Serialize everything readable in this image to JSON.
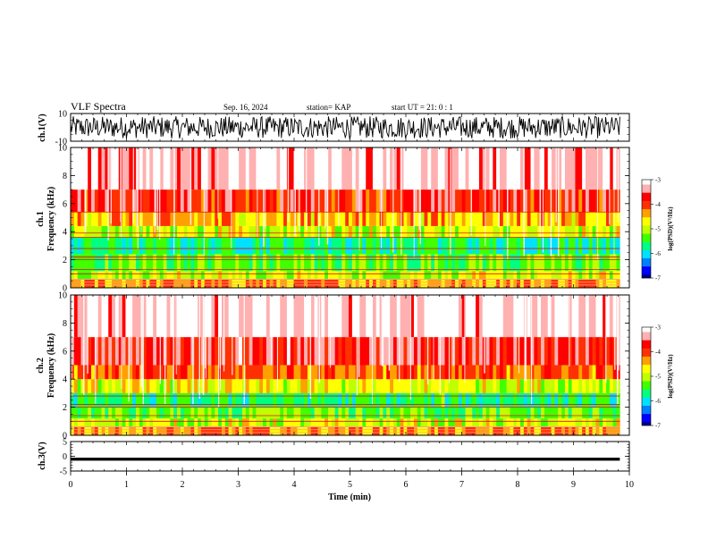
{
  "header": {
    "title": "VLF Spectra",
    "date": "Sep. 16, 2024",
    "station": "station= KAP",
    "start": "start  UT =  21: 0  : 1"
  },
  "colors": {
    "scale": [
      "#00007f",
      "#0000ff",
      "#0080ff",
      "#00e0ff",
      "#00ff80",
      "#40ff00",
      "#c0ff00",
      "#ffff00",
      "#ffa000",
      "#ff3000",
      "#ff0000",
      "#ffb0b0",
      "#ffffff"
    ]
  },
  "chart_data": [
    {
      "type": "line",
      "name": "ch1-waveform",
      "ylabel": "ch.1(V)",
      "ylim": [
        -10,
        10
      ],
      "yticks": [
        "10",
        "-10"
      ],
      "description_values": {
        "typical_amplitude_range": [
          -8,
          8
        ]
      }
    },
    {
      "type": "heatmap",
      "name": "ch1-spectrogram",
      "ylabel": "ch.1\nFrequency (kHz)",
      "ylabel_line1": "ch.1",
      "ylabel_line2": "Frequency (kHz)",
      "ylim": [
        0,
        10
      ],
      "yticks": [
        "0",
        "2",
        "4",
        "6",
        "8",
        "10"
      ],
      "colorbar": {
        "label": "log(PSD)(V²/Hz)",
        "range": [
          -7,
          -3
        ],
        "ticks": [
          "-3",
          "-4",
          "-5",
          "-6",
          "-7"
        ]
      },
      "band_levels": [
        {
          "from": 0,
          "to": 0.6,
          "level": -4.3
        },
        {
          "from": 0.6,
          "to": 1.2,
          "level": -4.9
        },
        {
          "from": 1.2,
          "to": 2.4,
          "level": -5.3
        },
        {
          "from": 2.4,
          "to": 3.6,
          "level": -5.6
        },
        {
          "from": 3.6,
          "to": 4.4,
          "level": -4.9
        },
        {
          "from": 4.4,
          "to": 5.4,
          "level": -4.4
        },
        {
          "from": 5.4,
          "to": 7.0,
          "level": -3.8
        },
        {
          "from": 7.0,
          "to": 10,
          "level": -3.2
        }
      ],
      "lines_khz": [
        0.2,
        0.4,
        0.6,
        1.0,
        1.3,
        2.0,
        2.2,
        2.8,
        3.6,
        3.9,
        5.4
      ]
    },
    {
      "type": "heatmap",
      "name": "ch2-spectrogram",
      "ylabel_line1": "ch.2",
      "ylabel_line2": "Frequency (kHz)",
      "ylim": [
        0,
        10
      ],
      "yticks": [
        "0",
        "2",
        "4",
        "6",
        "8",
        "10"
      ],
      "colorbar": {
        "label": "log(PSD)(V²/Hz)",
        "range": [
          -7,
          -3
        ],
        "ticks": [
          "-3",
          "-4",
          "-5",
          "-6",
          "-7"
        ]
      },
      "band_levels": [
        {
          "from": 0,
          "to": 0.6,
          "level": -4.3
        },
        {
          "from": 0.6,
          "to": 1.2,
          "level": -4.9
        },
        {
          "from": 1.2,
          "to": 2.0,
          "level": -5.3
        },
        {
          "from": 2.0,
          "to": 3.0,
          "level": -5.6
        },
        {
          "from": 3.0,
          "to": 4.0,
          "level": -4.8
        },
        {
          "from": 4.0,
          "to": 5.0,
          "level": -4.1
        },
        {
          "from": 5.0,
          "to": 7.0,
          "level": -3.6
        },
        {
          "from": 7.0,
          "to": 10,
          "level": -3.1
        }
      ],
      "lines_khz": [
        0.2,
        0.4,
        0.6,
        1.0,
        1.4,
        2.0,
        2.2,
        2.8
      ]
    },
    {
      "type": "line",
      "name": "ch3-waveform",
      "ylabel": "ch.3(V)",
      "ylim": [
        -5,
        5
      ],
      "yticks": [
        "5",
        "0",
        "-5"
      ],
      "description_values": {
        "typical_amplitude_range": [
          -1.5,
          -0.5
        ]
      }
    }
  ],
  "xaxis": {
    "label": "Time (min)",
    "xlim": [
      0,
      10
    ],
    "ticks": [
      "0",
      "1",
      "2",
      "3",
      "4",
      "5",
      "6",
      "7",
      "8",
      "9",
      "10"
    ],
    "data_end": 9.83
  }
}
